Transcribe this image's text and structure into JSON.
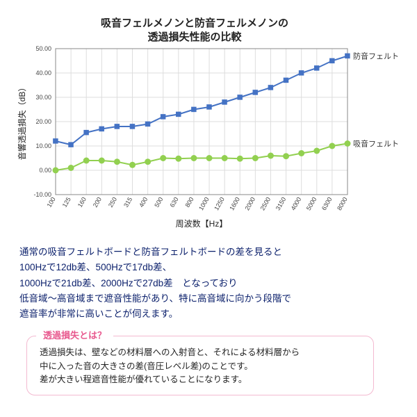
{
  "chart": {
    "title_line1": "吸音フェルメノンと防音フェルメノンの",
    "title_line2": "透過損失性能の比較",
    "title_fontsize": 15,
    "title_weight": "700",
    "title_color": "#222222",
    "background_color": "#ffffff",
    "grid_color": "#dddddd",
    "axis_color": "#888888",
    "tick_font_size": 9,
    "axis_label_font_size": 12,
    "x_label": "周波数【Hz】",
    "y_label": "音響透過損失（dB）",
    "x_categories": [
      "100",
      "125",
      "160",
      "200",
      "250",
      "315",
      "400",
      "500",
      "630",
      "800",
      "1000",
      "1250",
      "1600",
      "2000",
      "2500",
      "3150",
      "4000",
      "5000",
      "6300",
      "8000"
    ],
    "y_ticks": [
      -10,
      0,
      10,
      20,
      30,
      40,
      50
    ],
    "ylim": [
      -10,
      50
    ],
    "series": [
      {
        "name": "防音フェルト",
        "label": "防音フェルト",
        "color": "#4472c4",
        "marker": "square",
        "marker_size": 5,
        "line_width": 2,
        "values": [
          12,
          10.5,
          15.5,
          17,
          18,
          18,
          19,
          22,
          23,
          25,
          26,
          28,
          30,
          32,
          34,
          37,
          40,
          42,
          45,
          47
        ]
      },
      {
        "name": "吸音フェルト",
        "label": "吸音フェルト",
        "color": "#92d050",
        "marker": "circle",
        "marker_size": 4.5,
        "line_width": 2,
        "values": [
          0,
          1,
          4,
          4,
          3.5,
          2.2,
          3.5,
          5,
          4.8,
          5,
          5,
          5,
          4.8,
          5,
          6,
          5.8,
          7,
          8,
          10,
          11
        ]
      }
    ],
    "series_label_font_size": 11,
    "series_label_color": "#333333"
  },
  "description": {
    "lines": [
      "通常の吸音フェルトボードと防音フェルトボードの差を見ると",
      "100Hzで12db差、500Hzで17db差、",
      "1000Hzで21db差、2000Hzで27db差　となっており",
      "低音域〜高音域まで遮音性能があり、特に高音域に向かう段階で",
      "遮音率が非常に高いことが伺えます。"
    ]
  },
  "info": {
    "title": "透過損失とは？",
    "body_line1": "透過損失は、壁などの材料層への入射音と、それによる材料層から",
    "body_line2": "中に入った音の大きさの差(音圧レベル差)のことです。",
    "body_line3": "差が大きい程遮音性能が優れていることになります。"
  }
}
